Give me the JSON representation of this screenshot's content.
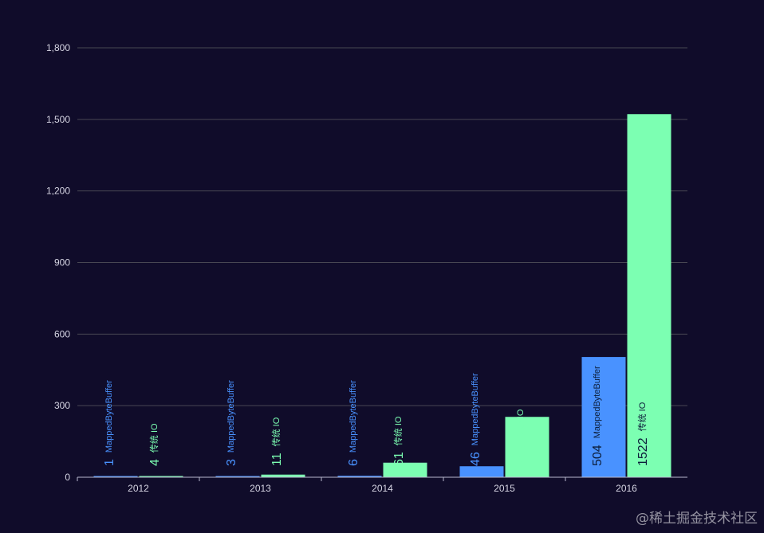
{
  "watermark": "@稀土掘金技术社区",
  "colors": {
    "background": "#100c2a",
    "grid": "#484753",
    "axis": "#b9b8ce",
    "tick_text": "#d6d5e3",
    "mappedbytebuffer": "#4992ff",
    "traditional_io": "#7cffb2",
    "label_inside": "#0c1d3a"
  },
  "chart_data": {
    "type": "bar",
    "title": "",
    "xlabel": "",
    "ylabel": "",
    "categories": [
      "2012",
      "2013",
      "2014",
      "2015",
      "2016"
    ],
    "series": [
      {
        "name": "MappedByteBuffer",
        "values": [
          1,
          3,
          6,
          46,
          504
        ]
      },
      {
        "name": "传统 IO",
        "values": [
          4,
          11,
          61,
          253,
          1522
        ]
      }
    ],
    "ylim": [
      0,
      1800
    ],
    "yticks": [
      0,
      300,
      600,
      900,
      1200,
      1500,
      1800
    ],
    "ytick_labels": [
      "0",
      "300",
      "600",
      "900",
      "1,200",
      "1,500",
      "1,800"
    ],
    "grid": true,
    "legend": "none",
    "data_labels": "rotated vertical, value followed by series name"
  }
}
